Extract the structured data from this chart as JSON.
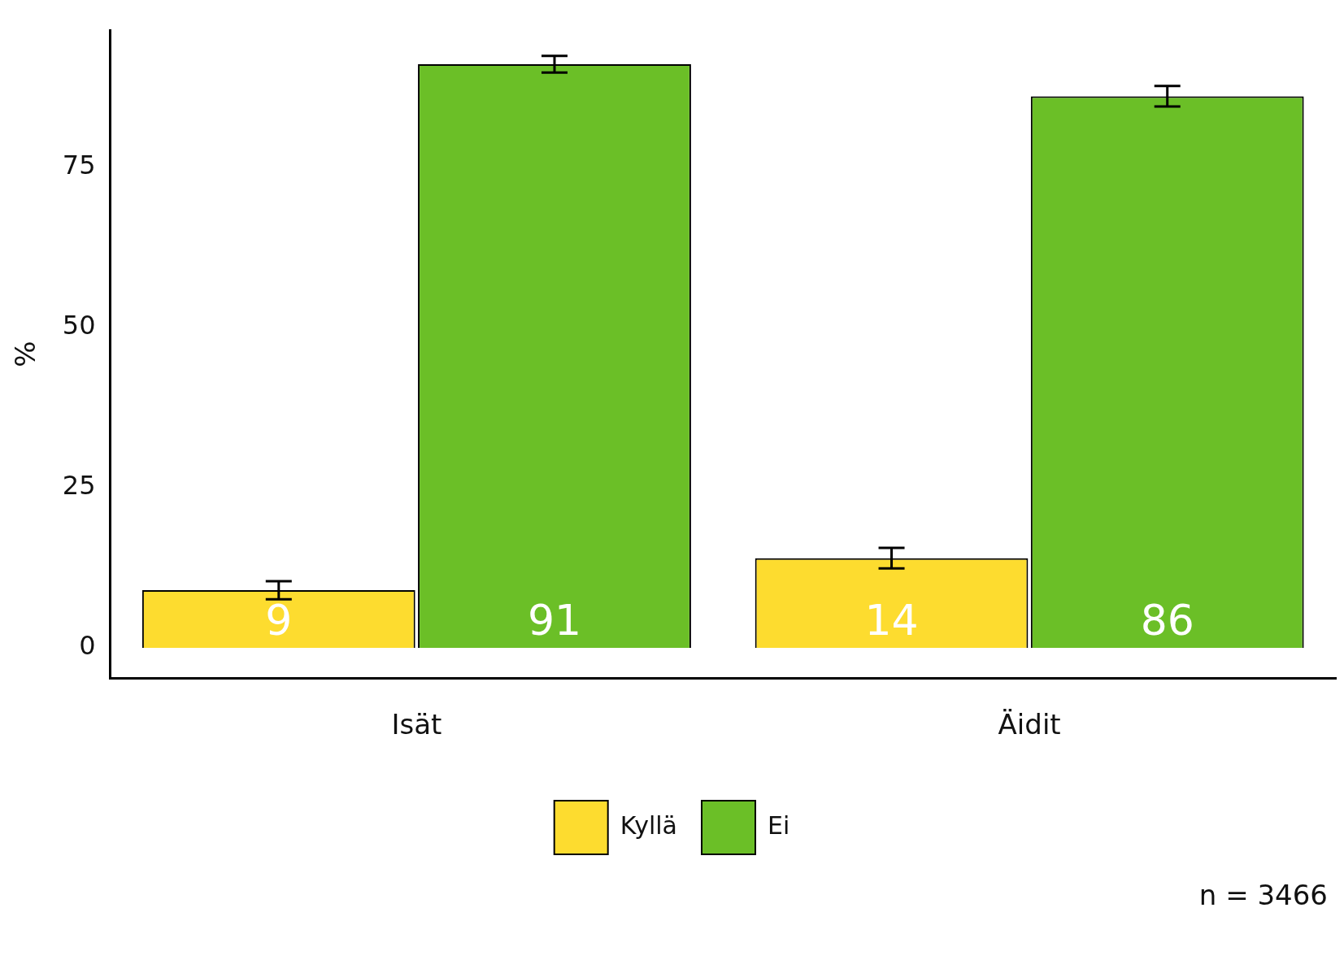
{
  "chart_data": {
    "type": "bar",
    "ylabel": "%",
    "categories": [
      "Isät",
      "Äidit"
    ],
    "series": [
      {
        "name": "Kyllä",
        "color": "#fddc2f",
        "values": [
          9,
          14
        ],
        "errors": [
          1.4,
          1.6
        ]
      },
      {
        "name": "Ei",
        "color": "#6bbf27",
        "values": [
          91,
          86
        ],
        "errors": [
          1.3,
          1.6
        ]
      }
    ],
    "ylim": [
      -4.7,
      96.3
    ],
    "yticks": [
      0,
      25,
      50,
      75
    ],
    "grid": false,
    "legend": "bottom",
    "data_labels": true,
    "annotations": [
      "n = 3466"
    ]
  }
}
